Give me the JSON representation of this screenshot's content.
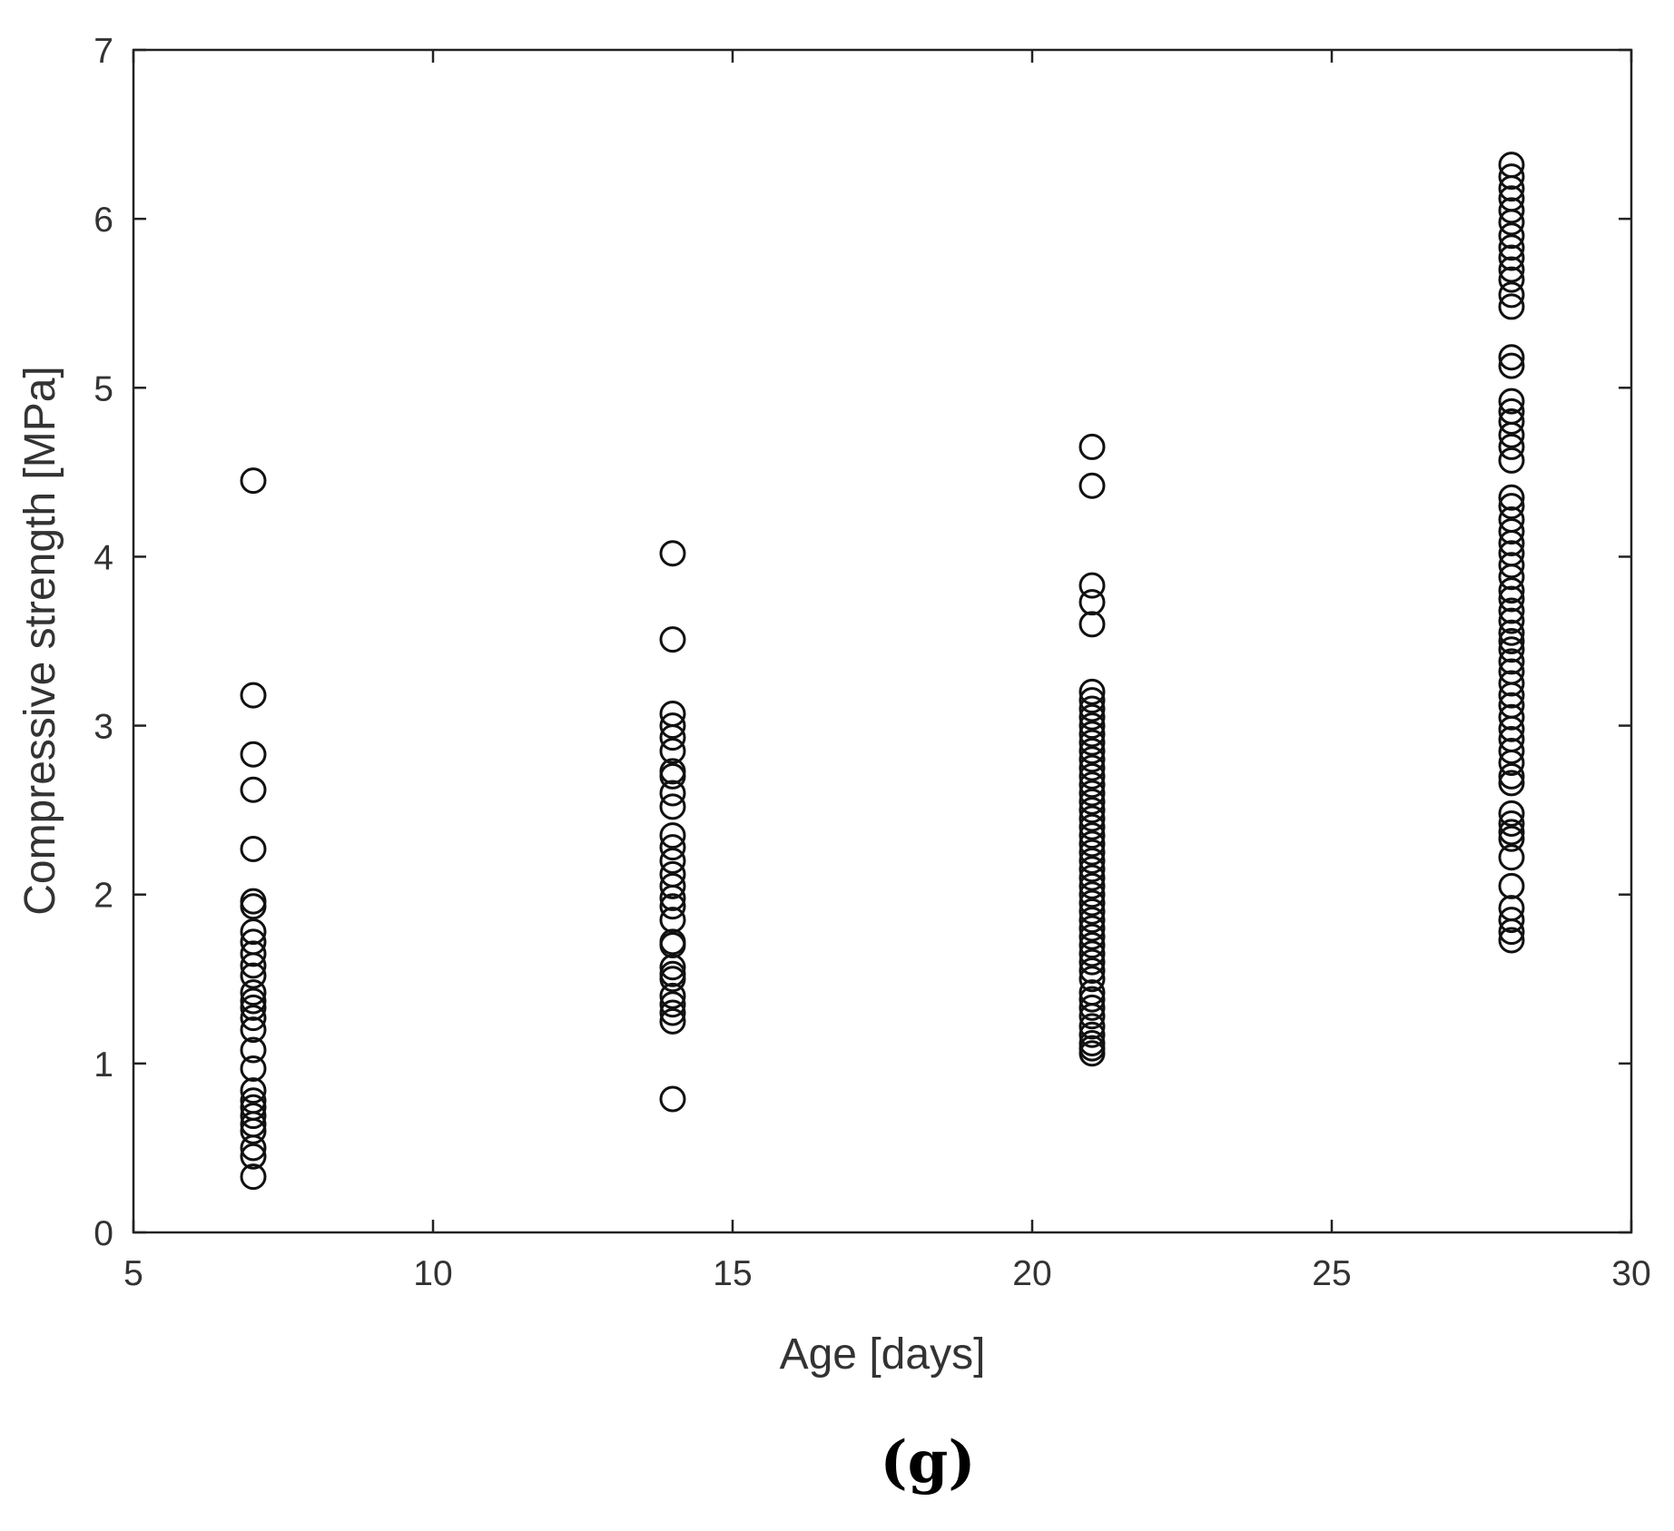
{
  "panel_label": "(g)",
  "chart_data": {
    "type": "scatter",
    "title": "",
    "xlabel": "Age [days]",
    "ylabel": "Compressive strength [MPa]",
    "xlim": [
      5,
      30
    ],
    "ylim": [
      0,
      7
    ],
    "xticks": [
      5,
      10,
      15,
      20,
      25,
      30
    ],
    "yticks": [
      0,
      1,
      2,
      3,
      4,
      5,
      6,
      7
    ],
    "grid": false,
    "legend": "none",
    "marker": "open-circle",
    "marker_color": "#111111",
    "series": [
      {
        "x": 7,
        "y": [
          4.45,
          3.18,
          2.83,
          2.62,
          2.27,
          1.96,
          1.93,
          1.78,
          1.72,
          1.65,
          1.58,
          1.52,
          1.42,
          1.37,
          1.33,
          1.27,
          1.2,
          1.08,
          0.97,
          0.84,
          0.78,
          0.74,
          0.69,
          0.64,
          0.6,
          0.5,
          0.45,
          0.33
        ]
      },
      {
        "x": 14,
        "y": [
          4.02,
          3.51,
          3.07,
          3.0,
          2.93,
          2.85,
          2.73,
          2.7,
          2.6,
          2.52,
          2.35,
          2.28,
          2.2,
          2.12,
          2.05,
          1.98,
          1.93,
          1.85,
          1.72,
          1.7,
          1.57,
          1.53,
          1.5,
          1.4,
          1.35,
          1.3,
          1.25,
          0.79
        ]
      },
      {
        "x": 21,
        "y": [
          4.65,
          4.42,
          3.83,
          3.73,
          3.6,
          3.2,
          3.15,
          3.1,
          3.05,
          3.0,
          2.95,
          2.9,
          2.85,
          2.8,
          2.75,
          2.7,
          2.65,
          2.6,
          2.55,
          2.5,
          2.45,
          2.4,
          2.35,
          2.3,
          2.25,
          2.2,
          2.15,
          2.1,
          2.05,
          2.0,
          1.95,
          1.9,
          1.85,
          1.8,
          1.75,
          1.7,
          1.65,
          1.6,
          1.55,
          1.5,
          1.42,
          1.38,
          1.33,
          1.28,
          1.22,
          1.17,
          1.12,
          1.09,
          1.06
        ]
      },
      {
        "x": 28,
        "y": [
          6.32,
          6.25,
          6.18,
          6.12,
          6.05,
          5.98,
          5.9,
          5.83,
          5.77,
          5.7,
          5.64,
          5.55,
          5.48,
          5.18,
          5.13,
          4.92,
          4.86,
          4.8,
          4.72,
          4.65,
          4.57,
          4.35,
          4.3,
          4.22,
          4.15,
          4.08,
          4.02,
          3.95,
          3.88,
          3.8,
          3.75,
          3.68,
          3.62,
          3.55,
          3.5,
          3.45,
          3.38,
          3.32,
          3.25,
          3.18,
          3.12,
          3.05,
          2.98,
          2.92,
          2.85,
          2.78,
          2.7,
          2.66,
          2.48,
          2.42,
          2.37,
          2.33,
          2.22,
          2.05,
          1.92,
          1.85,
          1.78,
          1.73
        ]
      }
    ]
  }
}
